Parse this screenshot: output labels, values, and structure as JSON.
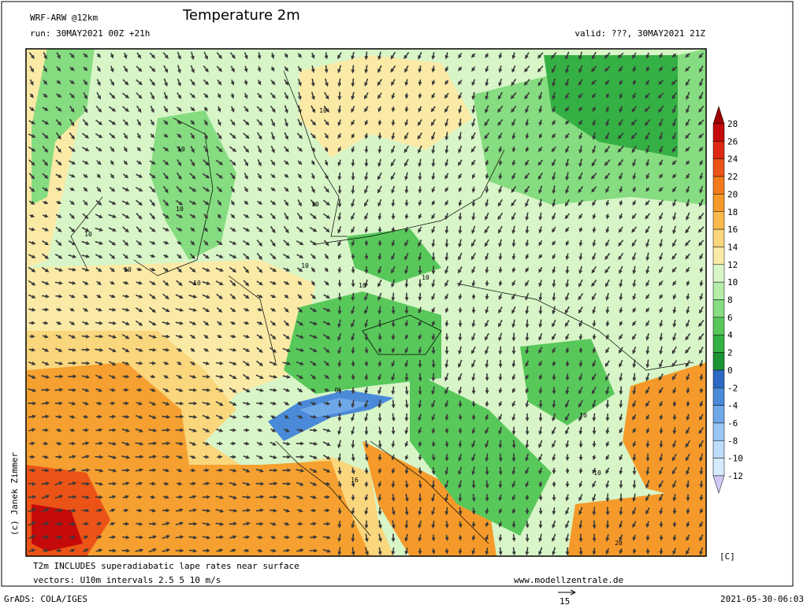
{
  "header": {
    "model": "WRF-ARW @12km",
    "title": "Temperature 2m",
    "run": "run: 30MAY2021 00Z +21h",
    "valid": "valid: ???, 30MAY2021 21Z"
  },
  "copyright": "(c) Janek Zimmer",
  "legend": {
    "ticks": [
      28,
      26,
      24,
      22,
      20,
      18,
      16,
      14,
      12,
      10,
      8,
      6,
      4,
      2,
      0,
      -2,
      -4,
      -6,
      -8,
      -10,
      -12
    ],
    "colors": [
      "#9e0000",
      "#c40a0a",
      "#de2a12",
      "#ec5316",
      "#f27a1c",
      "#f59a2a",
      "#f8b94c",
      "#fad67c",
      "#fbeaa6",
      "#d8f5c8",
      "#b4eca8",
      "#86dc80",
      "#58c85a",
      "#34b044",
      "#1a9434",
      "#2c68c4",
      "#4a8ad8",
      "#6ea8e8",
      "#98c6f4",
      "#bcdcfa",
      "#d6eafd",
      "#d2c8f6"
    ],
    "unit": "[C]"
  },
  "contour_labels": [
    10,
    10,
    10,
    10,
    10,
    10,
    10,
    10,
    10,
    10,
    16,
    10,
    20,
    0,
    10
  ],
  "footer": {
    "note": "T2m INCLUDES superadiabatic lape rates near surface",
    "vectors": "vectors: U10m intervals 2.5 5 10 m/s",
    "site": "www.modellzentrale.de",
    "software": "GrADS: COLA/IGES",
    "ref_vector": "15",
    "timestamp": "2021-05-30-06:03"
  }
}
